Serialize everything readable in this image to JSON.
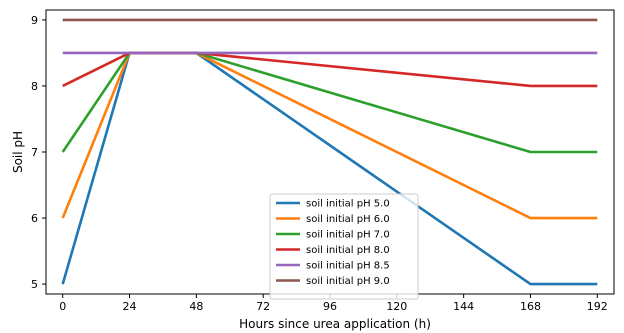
{
  "chart_data": {
    "type": "line",
    "title": "",
    "xlabel": "Hours since urea application (h)",
    "ylabel": "Soil pH",
    "xlim": [
      -6,
      198
    ],
    "ylim": [
      4.85,
      9.15
    ],
    "xticks": [
      0,
      24,
      48,
      72,
      96,
      120,
      144,
      168,
      192
    ],
    "yticks": [
      5,
      6,
      7,
      8,
      9
    ],
    "grid": false,
    "legend_position": "bottom-center",
    "series": [
      {
        "name": "soil initial pH 5.0",
        "color": "#1f77b4",
        "x": [
          0,
          24,
          48,
          168,
          192
        ],
        "y": [
          5.0,
          8.5,
          8.5,
          5.0,
          5.0
        ]
      },
      {
        "name": "soil initial pH 6.0",
        "color": "#ff7f0e",
        "x": [
          0,
          24,
          48,
          168,
          192
        ],
        "y": [
          6.0,
          8.5,
          8.5,
          6.0,
          6.0
        ]
      },
      {
        "name": "soil initial pH 7.0",
        "color": "#2ca02c",
        "x": [
          0,
          24,
          48,
          168,
          192
        ],
        "y": [
          7.0,
          8.5,
          8.5,
          7.0,
          7.0
        ]
      },
      {
        "name": "soil initial pH 8.0",
        "color": "#d62728",
        "x": [
          0,
          24,
          48,
          168,
          192
        ],
        "y": [
          8.0,
          8.5,
          8.5,
          8.0,
          8.0
        ]
      },
      {
        "name": "soil initial pH 8.5",
        "color": "#9467bd",
        "x": [
          0,
          24,
          48,
          168,
          192
        ],
        "y": [
          8.5,
          8.5,
          8.5,
          8.5,
          8.5
        ]
      },
      {
        "name": "soil initial pH 9.0",
        "color": "#8c564b",
        "x": [
          0,
          24,
          48,
          168,
          192
        ],
        "y": [
          9.0,
          9.0,
          9.0,
          9.0,
          9.0
        ]
      }
    ]
  }
}
